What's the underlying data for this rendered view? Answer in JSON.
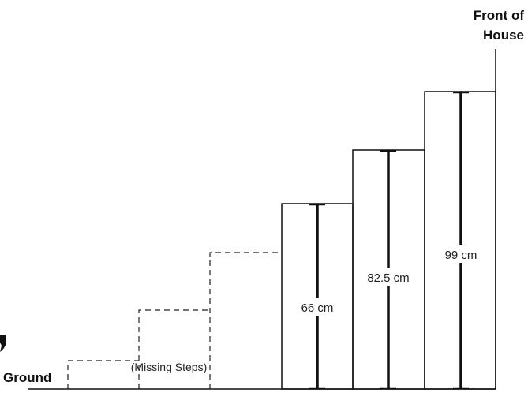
{
  "front_label": [
    "Front of",
    "House"
  ],
  "ground_label": "Ground",
  "missing_label": "(Missing Steps)",
  "steps": [
    {
      "height": "66 cm"
    },
    {
      "height": "82.5 cm"
    },
    {
      "height": "99 cm"
    }
  ],
  "colors": {
    "line": "#111111",
    "text": "#222222",
    "background": "#ffffff"
  }
}
